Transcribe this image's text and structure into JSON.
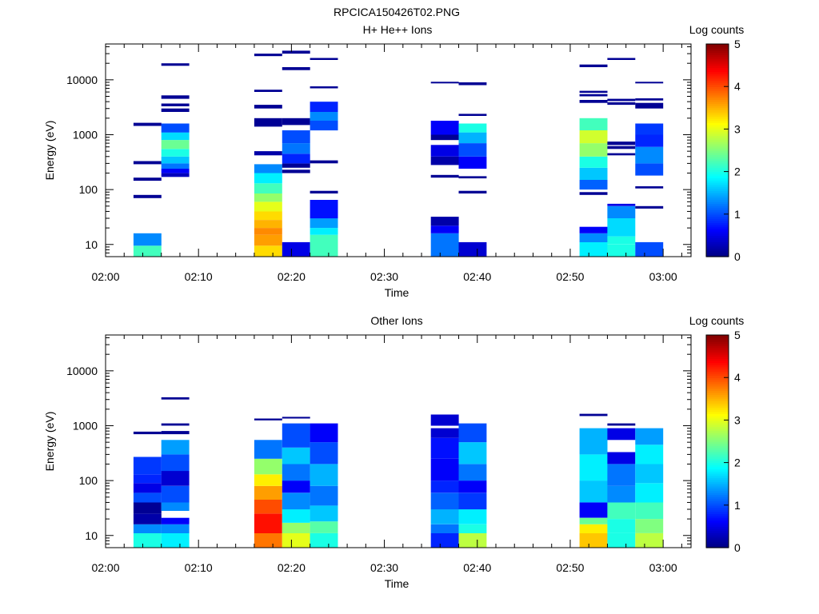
{
  "page_title": "RPCICA150426T02.PNG",
  "chart_data": [
    {
      "type": "heatmap",
      "title": "H+ He++ Ions",
      "xlabel": "Time",
      "ylabel": "Energy (eV)",
      "x_scale": "time",
      "x_ticks": [
        "02:00",
        "02:10",
        "02:20",
        "02:30",
        "02:40",
        "02:50",
        "03:00"
      ],
      "xlim": [
        "02:00",
        "03:03"
      ],
      "y_scale": "log",
      "ylim": [
        6,
        45000
      ],
      "y_ticks": [
        10,
        100,
        1000,
        10000
      ],
      "colorbar": {
        "label": "Log counts",
        "range": [
          0,
          5
        ],
        "ticks": [
          "0",
          "1",
          "2",
          "3",
          "4",
          "5"
        ],
        "colormap": "jet"
      },
      "columns": [
        {
          "start": "02:03",
          "end": "02:06",
          "bins": [
            [
              6.0,
              9.5,
              2.2
            ],
            [
              9.5,
              16,
              1.3
            ],
            [
              70,
              80,
              0.1
            ],
            [
              145,
              165,
              0.1
            ],
            [
              290,
              330,
              0.1
            ],
            [
              1450,
              1650,
              0.1
            ]
          ]
        },
        {
          "start": "02:06",
          "end": "02:09",
          "bins": [
            [
              170,
              200,
              0.3
            ],
            [
              200,
              240,
              0.6
            ],
            [
              240,
              300,
              1.2
            ],
            [
              300,
              400,
              1.6
            ],
            [
              400,
              550,
              2.0
            ],
            [
              550,
              800,
              2.4
            ],
            [
              800,
              1100,
              1.7
            ],
            [
              1100,
              1600,
              1.0
            ],
            [
              2600,
              3000,
              0.1
            ],
            [
              3300,
              3700,
              0.1
            ],
            [
              4500,
              5200,
              0.1
            ],
            [
              18000,
              20000,
              0.1
            ]
          ]
        },
        {
          "start": "02:16",
          "end": "02:19",
          "bins": [
            [
              6.0,
              9.5,
              3.3
            ],
            [
              9.5,
              15,
              3.6
            ],
            [
              15,
              20,
              3.7
            ],
            [
              20,
              28,
              3.5
            ],
            [
              28,
              40,
              3.3
            ],
            [
              40,
              60,
              3.0
            ],
            [
              60,
              85,
              2.6
            ],
            [
              85,
              130,
              2.2
            ],
            [
              130,
              200,
              1.8
            ],
            [
              200,
              290,
              1.3
            ],
            [
              420,
              500,
              0.2
            ],
            [
              1400,
              2000,
              0.1
            ],
            [
              3000,
              3500,
              0.1
            ],
            [
              6000,
              6600,
              0.1
            ],
            [
              27000,
              30000,
              0.1
            ]
          ]
        },
        {
          "start": "02:19",
          "end": "02:22",
          "bins": [
            [
              6.0,
              11,
              0.5
            ],
            [
              200,
              230,
              0.1
            ],
            [
              250,
              300,
              0.1
            ],
            [
              300,
              450,
              0.8
            ],
            [
              450,
              700,
              1.2
            ],
            [
              700,
              1200,
              1.0
            ],
            [
              1500,
              2000,
              0.1
            ],
            [
              15000,
              17000,
              0.1
            ],
            [
              30000,
              34000,
              0.1
            ]
          ]
        },
        {
          "start": "02:22",
          "end": "02:25",
          "bins": [
            [
              6.0,
              15,
              2.2
            ],
            [
              15,
              20,
              1.8
            ],
            [
              20,
              30,
              1.4
            ],
            [
              30,
              65,
              0.7
            ],
            [
              85,
              95,
              0.1
            ],
            [
              300,
              340,
              0.1
            ],
            [
              1200,
              1800,
              1.0
            ],
            [
              1800,
              2600,
              1.3
            ],
            [
              2600,
              4000,
              0.8
            ],
            [
              7000,
              7600,
              0.1
            ],
            [
              23000,
              25000,
              0.1
            ]
          ]
        },
        {
          "start": "02:35",
          "end": "02:38",
          "bins": [
            [
              6.0,
              16,
              1.2
            ],
            [
              16,
              22,
              0.6
            ],
            [
              22,
              32,
              0.2
            ],
            [
              165,
              185,
              0.1
            ],
            [
              280,
              400,
              0.2
            ],
            [
              400,
              650,
              0.5
            ],
            [
              800,
              1000,
              0.1
            ],
            [
              1000,
              1800,
              0.6
            ],
            [
              8600,
              9200,
              0.1
            ]
          ]
        },
        {
          "start": "02:38",
          "end": "02:41",
          "bins": [
            [
              6.0,
              11,
              0.4
            ],
            [
              85,
              95,
              0.1
            ],
            [
              160,
              175,
              0.1
            ],
            [
              240,
              400,
              0.6
            ],
            [
              400,
              700,
              1.0
            ],
            [
              700,
              1100,
              1.5
            ],
            [
              1100,
              1600,
              2.0
            ],
            [
              2200,
              2400,
              0.1
            ],
            [
              8000,
              9000,
              0.1
            ]
          ]
        },
        {
          "start": "02:51",
          "end": "02:54",
          "bins": [
            [
              6.0,
              11,
              1.8
            ],
            [
              11,
              16,
              1.3
            ],
            [
              16,
              21,
              0.6
            ],
            [
              80,
              90,
              0.1
            ],
            [
              100,
              150,
              1.1
            ],
            [
              150,
              250,
              1.6
            ],
            [
              250,
              400,
              2.0
            ],
            [
              400,
              700,
              2.6
            ],
            [
              700,
              1200,
              2.9
            ],
            [
              1200,
              2000,
              2.2
            ],
            [
              3800,
              4300,
              0.1
            ],
            [
              5000,
              5500,
              0.1
            ],
            [
              5800,
              6300,
              0.1
            ],
            [
              17000,
              19000,
              0.1
            ]
          ]
        },
        {
          "start": "02:54",
          "end": "02:57",
          "bins": [
            [
              6.0,
              10,
              2.0
            ],
            [
              10,
              14,
              2.0
            ],
            [
              14,
              30,
              1.7
            ],
            [
              30,
              50,
              1.3
            ],
            [
              50,
              55,
              0.5
            ],
            [
              420,
              460,
              0.1
            ],
            [
              550,
              620,
              0.1
            ],
            [
              650,
              750,
              0.1
            ],
            [
              3500,
              3900,
              0.1
            ],
            [
              4100,
              4500,
              0.1
            ],
            [
              23000,
              25000,
              0.1
            ]
          ]
        },
        {
          "start": "02:57",
          "end": "03:00",
          "bins": [
            [
              6.0,
              11,
              1.0
            ],
            [
              45,
              50,
              0.1
            ],
            [
              105,
              115,
              0.1
            ],
            [
              180,
              300,
              1.0
            ],
            [
              300,
              600,
              1.3
            ],
            [
              600,
              1000,
              0.8
            ],
            [
              1000,
              1600,
              0.9
            ],
            [
              3000,
              3800,
              0.1
            ],
            [
              4200,
              4600,
              0.1
            ],
            [
              8600,
              9200,
              0.1
            ]
          ]
        }
      ]
    },
    {
      "type": "heatmap",
      "title": "Other Ions",
      "xlabel": "Time",
      "ylabel": "Energy (eV)",
      "x_scale": "time",
      "x_ticks": [
        "02:00",
        "02:10",
        "02:20",
        "02:30",
        "02:40",
        "02:50",
        "03:00"
      ],
      "xlim": [
        "02:00",
        "03:03"
      ],
      "y_scale": "log",
      "ylim": [
        6,
        45000
      ],
      "y_ticks": [
        10,
        100,
        1000,
        10000
      ],
      "colorbar": {
        "label": "Log counts",
        "range": [
          0,
          5
        ],
        "ticks": [
          "0",
          "1",
          "2",
          "3",
          "4",
          "5"
        ],
        "colormap": "jet"
      },
      "columns": [
        {
          "start": "02:03",
          "end": "02:06",
          "bins": [
            [
              6.0,
              11,
              2.0
            ],
            [
              11,
              16,
              1.3
            ],
            [
              16,
              25,
              0.2
            ],
            [
              25,
              40,
              0.1
            ],
            [
              40,
              60,
              1.0
            ],
            [
              60,
              90,
              0.5
            ],
            [
              90,
              130,
              0.8
            ],
            [
              130,
              270,
              0.9
            ],
            [
              700,
              780,
              0.1
            ]
          ]
        },
        {
          "start": "02:06",
          "end": "02:09",
          "bins": [
            [
              6.0,
              11,
              1.8
            ],
            [
              11,
              16,
              1.3
            ],
            [
              16,
              21,
              0.6
            ],
            [
              28,
              40,
              1.3
            ],
            [
              40,
              80,
              1.0
            ],
            [
              80,
              150,
              0.4
            ],
            [
              150,
              300,
              1.0
            ],
            [
              300,
              550,
              1.4
            ],
            [
              700,
              800,
              0.1
            ],
            [
              1000,
              1100,
              0.1
            ],
            [
              3000,
              3300,
              0.1
            ]
          ]
        },
        {
          "start": "02:16",
          "end": "02:19",
          "bins": [
            [
              6.0,
              11,
              3.8
            ],
            [
              11,
              25,
              4.3
            ],
            [
              25,
              45,
              4.0
            ],
            [
              45,
              80,
              3.6
            ],
            [
              80,
              130,
              3.2
            ],
            [
              130,
              250,
              2.6
            ],
            [
              250,
              550,
              1.2
            ],
            [
              1250,
              1350,
              0.1
            ]
          ]
        },
        {
          "start": "02:19",
          "end": "02:22",
          "bins": [
            [
              6.0,
              11,
              3.0
            ],
            [
              11,
              17,
              2.6
            ],
            [
              17,
              30,
              1.8
            ],
            [
              30,
              60,
              1.3
            ],
            [
              60,
              100,
              0.6
            ],
            [
              100,
              200,
              1.2
            ],
            [
              200,
              400,
              1.6
            ],
            [
              400,
              1100,
              1.0
            ],
            [
              1350,
              1450,
              0.1
            ]
          ]
        },
        {
          "start": "02:22",
          "end": "02:25",
          "bins": [
            [
              6.0,
              11,
              2.0
            ],
            [
              11,
              18,
              2.3
            ],
            [
              18,
              35,
              1.6
            ],
            [
              35,
              80,
              1.2
            ],
            [
              80,
              200,
              1.5
            ],
            [
              200,
              500,
              1.0
            ],
            [
              500,
              1100,
              0.6
            ]
          ]
        },
        {
          "start": "02:35",
          "end": "02:38",
          "bins": [
            [
              6.0,
              11,
              0.8
            ],
            [
              11,
              16,
              1.2
            ],
            [
              16,
              30,
              1.5
            ],
            [
              30,
              60,
              1.1
            ],
            [
              60,
              100,
              0.8
            ],
            [
              100,
              250,
              0.6
            ],
            [
              250,
              600,
              0.7
            ],
            [
              600,
              900,
              0.4
            ],
            [
              1000,
              1600,
              0.4
            ]
          ]
        },
        {
          "start": "02:38",
          "end": "02:41",
          "bins": [
            [
              6.0,
              11,
              2.8
            ],
            [
              11,
              16,
              2.0
            ],
            [
              16,
              30,
              1.8
            ],
            [
              30,
              60,
              0.9
            ],
            [
              60,
              100,
              0.6
            ],
            [
              100,
              200,
              1.2
            ],
            [
              200,
              500,
              1.6
            ],
            [
              500,
              1100,
              1.0
            ]
          ]
        },
        {
          "start": "02:51",
          "end": "02:54",
          "bins": [
            [
              6.0,
              11,
              3.4
            ],
            [
              11,
              16,
              3.2
            ],
            [
              16,
              21,
              2.4
            ],
            [
              21,
              40,
              0.6
            ],
            [
              40,
              100,
              1.6
            ],
            [
              100,
              300,
              1.8
            ],
            [
              300,
              900,
              1.5
            ],
            [
              1500,
              1650,
              0.1
            ]
          ]
        },
        {
          "start": "02:54",
          "end": "02:57",
          "bins": [
            [
              6.0,
              11,
              2.0
            ],
            [
              11,
              20,
              2.0
            ],
            [
              20,
              40,
              2.2
            ],
            [
              40,
              80,
              1.3
            ],
            [
              80,
              200,
              1.2
            ],
            [
              200,
              330,
              0.5
            ],
            [
              550,
              900,
              0.5
            ],
            [
              1000,
              1100,
              0.1
            ]
          ]
        },
        {
          "start": "02:57",
          "end": "03:00",
          "bins": [
            [
              6.0,
              11,
              2.8
            ],
            [
              11,
              20,
              2.5
            ],
            [
              20,
              40,
              2.2
            ],
            [
              40,
              90,
              1.8
            ],
            [
              90,
              200,
              1.6
            ],
            [
              200,
              450,
              1.8
            ],
            [
              450,
              900,
              1.4
            ]
          ]
        }
      ]
    }
  ]
}
